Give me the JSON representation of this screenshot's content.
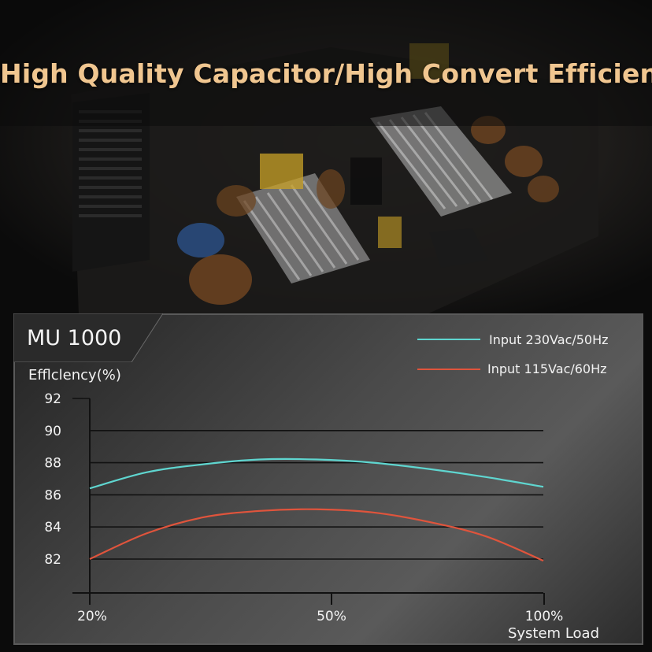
{
  "headline": "High Quality Capacitor/High Convert Efficiency",
  "model": "MU 1000",
  "colors": {
    "headline": "#f0c690",
    "series_230": "#5fd6d0",
    "series_115": "#e0543c",
    "grid": "#111111"
  },
  "chart_data": {
    "type": "line",
    "ylabel": "Efflclency(%)",
    "xlabel": "System Load",
    "x_ticks": [
      "20%",
      "50%",
      "100%"
    ],
    "y_ticks": [
      "92",
      "90",
      "88",
      "86",
      "84",
      "82"
    ],
    "ylim": [
      81.5,
      92.3
    ],
    "xlim": [
      20,
      100
    ],
    "grid": true,
    "legend_position": "top-right",
    "series": [
      {
        "name": "Input 230Vac/50Hz",
        "x": [
          20,
          30,
          40,
          50,
          60,
          70,
          80,
          90,
          100
        ],
        "y": [
          86.4,
          87.4,
          87.9,
          88.2,
          88.2,
          88.0,
          87.6,
          87.1,
          86.5
        ]
      },
      {
        "name": "Input 115Vac/60Hz",
        "x": [
          20,
          30,
          40,
          50,
          60,
          70,
          80,
          90,
          100
        ],
        "y": [
          82.0,
          83.6,
          84.6,
          85.0,
          85.1,
          84.9,
          84.3,
          83.4,
          81.9
        ]
      }
    ]
  }
}
